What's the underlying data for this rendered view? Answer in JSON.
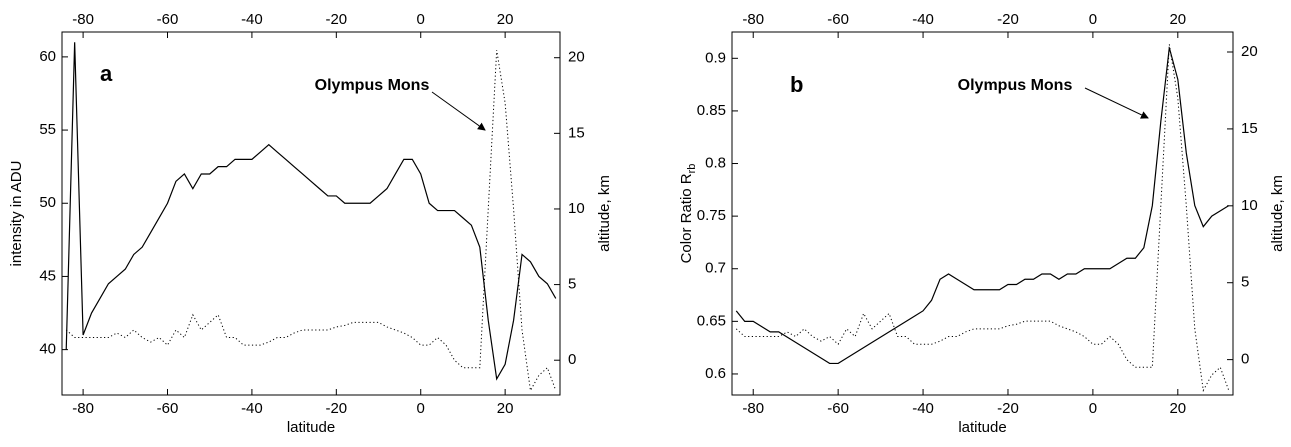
{
  "chart_data": [
    {
      "type": "line",
      "panel_label": "a",
      "xlabel": "latitude",
      "ylabel": "intensity in ADU",
      "y2label": "altitude, km",
      "annotation": "Olympus Mons",
      "x": [
        -84,
        -82,
        -80,
        -78,
        -76,
        -74,
        -72,
        -70,
        -68,
        -66,
        -64,
        -62,
        -60,
        -58,
        -56,
        -54,
        -52,
        -50,
        -48,
        -46,
        -44,
        -42,
        -40,
        -38,
        -36,
        -34,
        -32,
        -30,
        -28,
        -26,
        -24,
        -22,
        -20,
        -18,
        -16,
        -14,
        -12,
        -10,
        -8,
        -6,
        -4,
        -2,
        0,
        2,
        4,
        6,
        8,
        10,
        12,
        14,
        16,
        18,
        20,
        22,
        24,
        26,
        28,
        30,
        32
      ],
      "series": [
        {
          "color": "#000000",
          "line_style": "solid",
          "values": [
            40,
            61,
            41,
            42.5,
            43.5,
            44.5,
            45,
            45.5,
            46.5,
            47,
            48,
            49,
            50,
            51.5,
            52,
            51,
            52,
            52,
            52.5,
            52.5,
            53,
            53,
            53,
            53.5,
            54,
            53.5,
            53,
            52.5,
            52,
            51.5,
            51,
            50.5,
            50.5,
            50,
            50,
            50,
            50,
            50.5,
            51,
            52,
            53,
            53,
            52,
            50,
            49.5,
            49.5,
            49.5,
            49,
            48.5,
            47,
            42,
            38,
            39,
            42,
            46.5,
            46,
            45,
            44.5,
            43.5
          ]
        },
        {
          "color": "#000000",
          "line_style": "dotted",
          "axis": "y2",
          "values": [
            2,
            1.5,
            1.5,
            1.5,
            1.5,
            1.5,
            1.8,
            1.5,
            2,
            1.5,
            1.2,
            1.5,
            1,
            2,
            1.5,
            3,
            2,
            2.5,
            3,
            1.5,
            1.5,
            1,
            1,
            1,
            1.2,
            1.5,
            1.5,
            1.8,
            2,
            2,
            2,
            2,
            2.2,
            2.3,
            2.5,
            2.5,
            2.5,
            2.5,
            2.2,
            2,
            1.8,
            1.5,
            1,
            1,
            1.5,
            1,
            0,
            -0.5,
            -0.5,
            -0.5,
            10,
            20.5,
            17,
            10,
            2,
            -2,
            -1,
            -0.5,
            -2
          ]
        }
      ],
      "xlim": [
        -85,
        33
      ],
      "xticks": [
        -80,
        -60,
        -40,
        -20,
        0,
        20
      ],
      "ylim": [
        36.9,
        61.7
      ],
      "yticks": [
        40,
        45,
        50,
        55,
        60
      ],
      "y2lim": [
        -2.3,
        21.7
      ],
      "y2ticks": [
        0,
        5,
        10,
        15,
        20
      ]
    },
    {
      "type": "line",
      "panel_label": "b",
      "xlabel": "latitude",
      "ylabel": "Color Ratio R",
      "ylabel_subscript": "rb",
      "y2label": "altitude, km",
      "annotation": "Olympus Mons",
      "x": [
        -84,
        -82,
        -80,
        -78,
        -76,
        -74,
        -72,
        -70,
        -68,
        -66,
        -64,
        -62,
        -60,
        -58,
        -56,
        -54,
        -52,
        -50,
        -48,
        -46,
        -44,
        -42,
        -40,
        -38,
        -36,
        -34,
        -32,
        -30,
        -28,
        -26,
        -24,
        -22,
        -20,
        -18,
        -16,
        -14,
        -12,
        -10,
        -8,
        -6,
        -4,
        -2,
        0,
        2,
        4,
        6,
        8,
        10,
        12,
        14,
        16,
        18,
        20,
        22,
        24,
        26,
        28,
        30,
        32
      ],
      "series": [
        {
          "color": "#000000",
          "line_style": "solid",
          "values": [
            0.66,
            0.65,
            0.65,
            0.645,
            0.64,
            0.64,
            0.635,
            0.63,
            0.625,
            0.62,
            0.615,
            0.61,
            0.61,
            0.615,
            0.62,
            0.625,
            0.63,
            0.635,
            0.64,
            0.645,
            0.65,
            0.655,
            0.66,
            0.67,
            0.69,
            0.695,
            0.69,
            0.685,
            0.68,
            0.68,
            0.68,
            0.68,
            0.685,
            0.685,
            0.69,
            0.69,
            0.695,
            0.695,
            0.69,
            0.695,
            0.695,
            0.7,
            0.7,
            0.7,
            0.7,
            0.705,
            0.71,
            0.71,
            0.72,
            0.76,
            0.84,
            0.91,
            0.88,
            0.81,
            0.76,
            0.74,
            0.75,
            0.755,
            0.76
          ]
        },
        {
          "color": "#000000",
          "line_style": "dotted",
          "axis": "y2",
          "values": [
            2,
            1.5,
            1.5,
            1.5,
            1.5,
            1.5,
            1.8,
            1.5,
            2,
            1.5,
            1.2,
            1.5,
            1,
            2,
            1.5,
            3,
            2,
            2.5,
            3,
            1.5,
            1.5,
            1,
            1,
            1,
            1.2,
            1.5,
            1.5,
            1.8,
            2,
            2,
            2,
            2,
            2.2,
            2.3,
            2.5,
            2.5,
            2.5,
            2.5,
            2.2,
            2,
            1.8,
            1.5,
            1,
            1,
            1.5,
            1,
            0,
            -0.5,
            -0.5,
            -0.5,
            10,
            20.5,
            17,
            10,
            2,
            -2,
            -1,
            -0.5,
            -2
          ]
        }
      ],
      "xlim": [
        -85,
        33
      ],
      "xticks": [
        -80,
        -60,
        -40,
        -20,
        0,
        20
      ],
      "ylim": [
        0.58,
        0.925
      ],
      "yticks": [
        0.6,
        0.65,
        0.7,
        0.75,
        0.8,
        0.85,
        0.9
      ],
      "y2lim": [
        -2.3,
        21.3
      ],
      "y2ticks": [
        0,
        5,
        10,
        15,
        20
      ]
    }
  ]
}
